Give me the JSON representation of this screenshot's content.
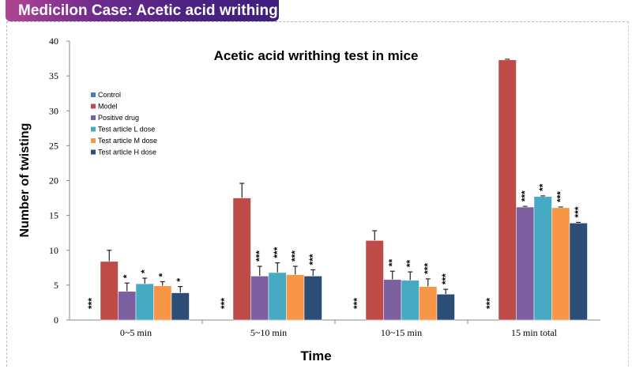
{
  "banner": {
    "title": "Medicilon Case: Acetic acid writhing test"
  },
  "chart_data": {
    "type": "bar",
    "title": "Acetic acid writhing test in mice",
    "xlabel": "Time",
    "ylabel": "Number of twisting",
    "ylim": [
      0,
      40
    ],
    "yticks": [
      "0",
      "5",
      "10",
      "15",
      "20",
      "25",
      "30",
      "35",
      "40"
    ],
    "grid": false,
    "legend_position": "top-left",
    "categories": [
      "0~5 min",
      "5~10 min",
      "10~15 min",
      "15 min total"
    ],
    "series": [
      {
        "name": "Control",
        "color": "#4a7ebb",
        "values": [
          0,
          0,
          0,
          0
        ],
        "errors": [
          0,
          0,
          0,
          0
        ],
        "significance": [
          "***",
          "***",
          "***",
          "***"
        ]
      },
      {
        "name": "Model",
        "color": "#be4b48",
        "values": [
          8.4,
          17.5,
          11.4,
          37.3
        ],
        "errors": [
          1.6,
          2.1,
          1.4,
          0.1
        ],
        "significance": [
          "",
          "",
          "",
          ""
        ]
      },
      {
        "name": "Positive drug",
        "color": "#7d60a0",
        "values": [
          4.1,
          6.3,
          5.8,
          16.2
        ],
        "errors": [
          1.2,
          1.4,
          1.2,
          0.1
        ],
        "significance": [
          "*",
          "***",
          "**",
          "***"
        ]
      },
      {
        "name": "Test article L dose",
        "color": "#46aac5",
        "values": [
          5.2,
          6.8,
          5.7,
          17.7
        ],
        "errors": [
          0.8,
          1.4,
          1.2,
          0.1
        ],
        "significance": [
          "*",
          "***",
          "**",
          "**"
        ]
      },
      {
        "name": "Test article M dose",
        "color": "#f79646",
        "values": [
          4.9,
          6.5,
          4.8,
          16.1
        ],
        "errors": [
          0.6,
          1.2,
          1.1,
          0.1
        ],
        "significance": [
          "*",
          "***",
          "***",
          "***"
        ]
      },
      {
        "name": "Test article H dose",
        "color": "#2c4d75",
        "values": [
          3.9,
          6.3,
          3.7,
          13.9
        ],
        "errors": [
          0.9,
          0.9,
          0.7,
          0.1
        ],
        "significance": [
          "*",
          "***",
          "***",
          "***"
        ]
      }
    ]
  }
}
